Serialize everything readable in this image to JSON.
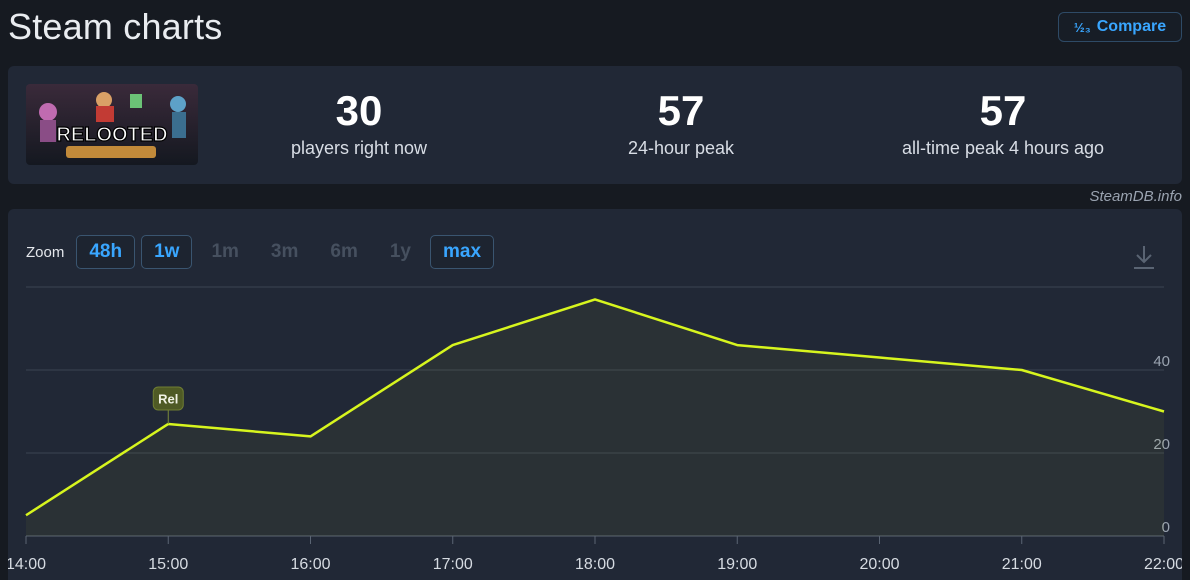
{
  "header": {
    "title": "Steam charts",
    "compare_label": "Compare",
    "compare_icon": "numeric-icon"
  },
  "game": {
    "thumbnail_text": "RELOOTED"
  },
  "stats": [
    {
      "value": "30",
      "label": "players right now"
    },
    {
      "value": "57",
      "label": "24-hour peak"
    },
    {
      "value": "57",
      "label": "all-time peak 4 hours ago"
    }
  ],
  "credit": "SteamDB.info",
  "zoom": {
    "label": "Zoom",
    "options": [
      {
        "label": "48h",
        "active": true
      },
      {
        "label": "1w",
        "active": true
      },
      {
        "label": "1m",
        "active": false
      },
      {
        "label": "3m",
        "active": false
      },
      {
        "label": "6m",
        "active": false
      },
      {
        "label": "1y",
        "active": false
      },
      {
        "label": "max",
        "active": true
      }
    ]
  },
  "colors": {
    "line": "#d7f51e",
    "accent": "#39a6ff",
    "panel": "#212836",
    "background": "#161a21"
  },
  "chart_data": {
    "type": "line",
    "x": [
      "14:00",
      "15:00",
      "16:00",
      "17:00",
      "18:00",
      "19:00",
      "20:00",
      "21:00",
      "22:00"
    ],
    "xticks": [
      "14:00",
      "15:00",
      "16:00",
      "17:00",
      "18:00",
      "19:00",
      "20:00",
      "21:00",
      "22:00"
    ],
    "series": [
      {
        "values": [
          5,
          27,
          24,
          46,
          57,
          46,
          43,
          40,
          30
        ]
      }
    ],
    "yticks": [
      0,
      20,
      40
    ],
    "ylim": [
      0,
      60
    ],
    "grid": true,
    "annotations": [
      {
        "x": "15:00",
        "text": "Rel"
      }
    ]
  }
}
